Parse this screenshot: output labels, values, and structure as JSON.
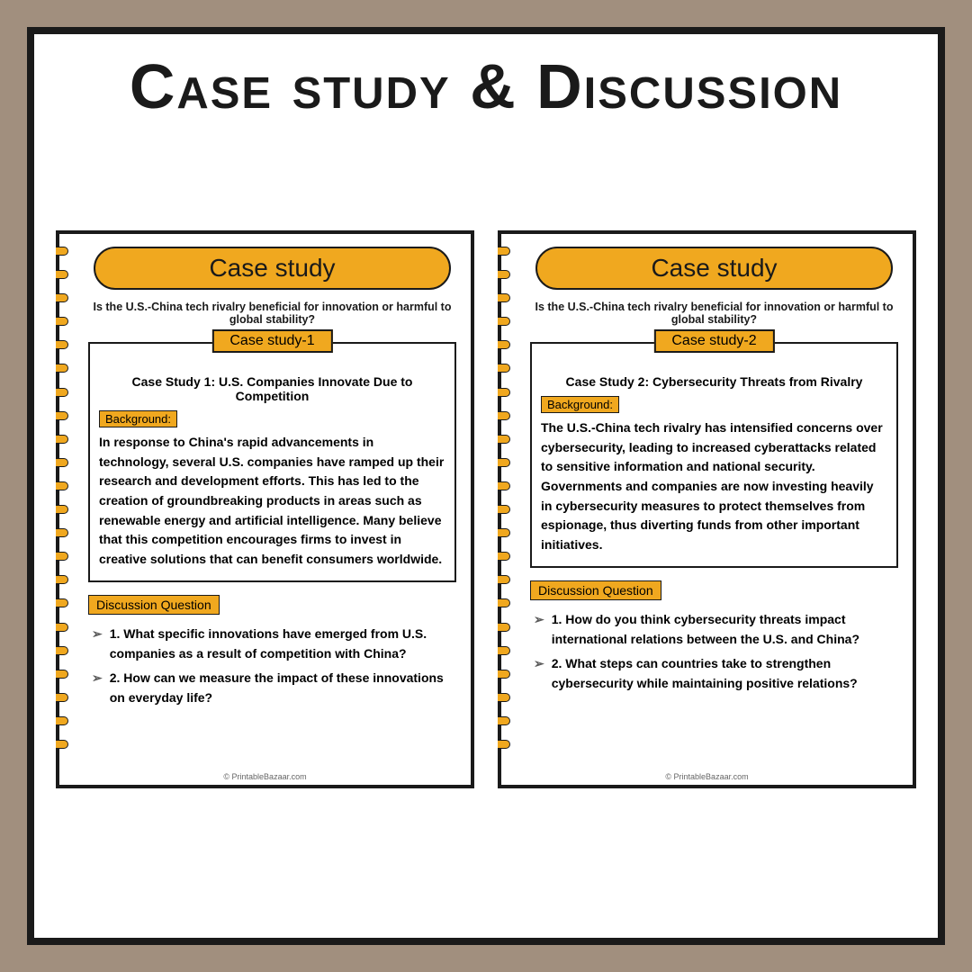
{
  "colors": {
    "page_bg": "#a18f7e",
    "white": "#ffffff",
    "black": "#1a1a1a",
    "orange": "#f0a81f",
    "footer_gray": "#666666"
  },
  "main_title": "Case study & Discussion",
  "main_title_fontsize": 70,
  "banner_label": "Case study",
  "banner_fontsize": 28,
  "topic_question": "Is the U.S.-China tech rivalry beneficial for innovation or harmful to global stability?",
  "background_label": "Background:",
  "discussion_label": "Discussion Question",
  "footer_text": "© PrintableBazaar.com",
  "spiral_ring_count": 22,
  "pages": [
    {
      "tab": "Case study-1",
      "case_title": "Case Study 1: U.S. Companies Innovate Due to Competition",
      "background": "In response to China's rapid advancements in technology, several U.S. companies have ramped up their research and development efforts. This has led to the creation of groundbreaking products in areas such as renewable energy and artificial intelligence. Many believe that this competition encourages firms to invest in creative solutions that can benefit consumers worldwide.",
      "questions": [
        "1. What specific innovations have emerged from U.S. companies as a result of competition with China?",
        "2. How can we measure the impact of these innovations on everyday life?"
      ]
    },
    {
      "tab": "Case study-2",
      "case_title": "Case Study 2: Cybersecurity Threats from Rivalry",
      "background": "The U.S.-China tech rivalry has intensified concerns over cybersecurity, leading to increased cyberattacks related to sensitive information and national security. Governments and companies are now investing heavily in cybersecurity measures to protect themselves from espionage, thus diverting funds from other important initiatives.",
      "questions": [
        "1. How do you think cybersecurity threats impact international relations between the U.S. and China?",
        "2. What steps can countries take to strengthen cybersecurity while maintaining positive relations?"
      ]
    }
  ]
}
